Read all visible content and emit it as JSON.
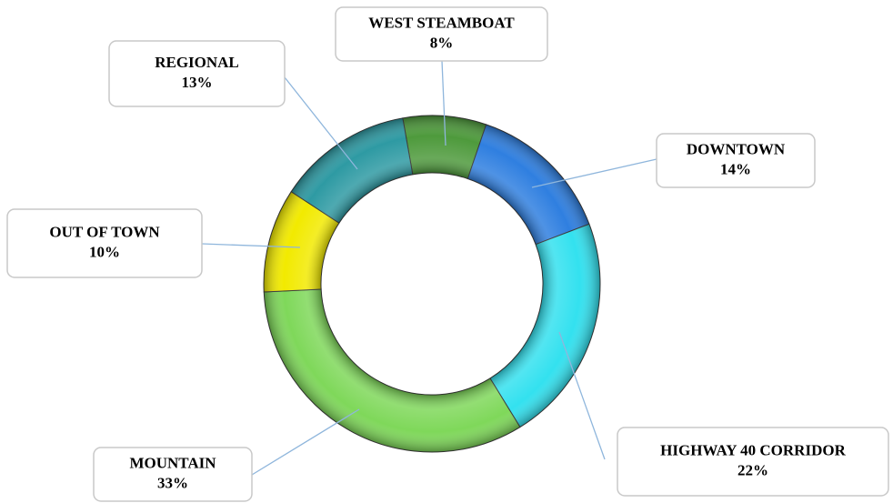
{
  "chart_data": {
    "type": "donut",
    "categories": [
      "WEST STEAMBOAT",
      "DOWNTOWN",
      "HIGHWAY 40 CORRIDOR",
      "MOUNTAIN",
      "OUT OF TOWN",
      "REGIONAL"
    ],
    "values": [
      8,
      14,
      22,
      33,
      10,
      13
    ],
    "value_labels": [
      "8%",
      "14%",
      "22%",
      "33%",
      "10%",
      "13%"
    ],
    "colors": [
      "#4e9a3c",
      "#2f7fe0",
      "#33e1ef",
      "#7fd85a",
      "#f2ea00",
      "#2e9aa3"
    ]
  }
}
